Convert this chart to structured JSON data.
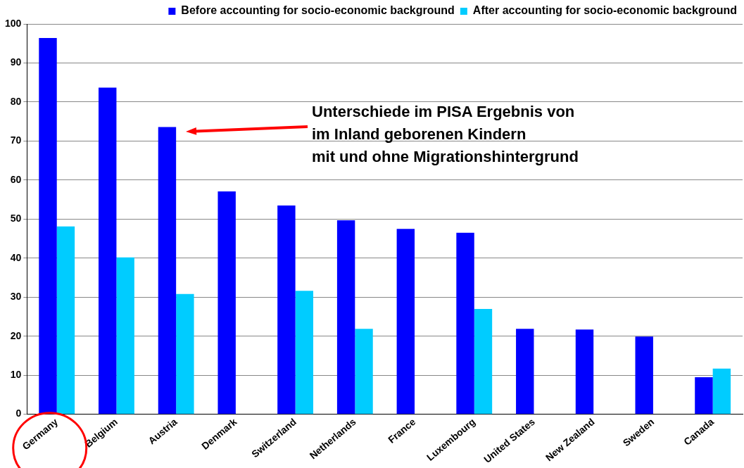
{
  "chart_data": {
    "type": "bar",
    "categories": [
      "Germany",
      "Belgium",
      "Austria",
      "Denmark",
      "Switzerland",
      "Netherlands",
      "France",
      "Luxembourg",
      "United States",
      "New Zealand",
      "Sweden",
      "Canada"
    ],
    "series": [
      {
        "name": "Before accounting for socio-economic background",
        "color": "#0000ff",
        "values": [
          96.4,
          83.7,
          73.6,
          57.1,
          53.5,
          49.7,
          47.5,
          46.5,
          21.9,
          21.7,
          19.9,
          9.5
        ]
      },
      {
        "name": "After accounting for socio-economic background",
        "color": "#00ccff",
        "values": [
          48.1,
          40.2,
          30.8,
          null,
          31.6,
          21.9,
          null,
          27.0,
          null,
          null,
          null,
          11.7
        ]
      }
    ],
    "ylim": [
      0,
      100
    ],
    "yticks": [
      0,
      10,
      20,
      30,
      40,
      50,
      60,
      70,
      80,
      90,
      100
    ],
    "grid": "y",
    "legend": "top",
    "annotations": [
      "Unterschiede im PISA Ergebnis von\nim Inland geborenen Kindern\nmit und ohne Migrationshintergrund"
    ]
  }
}
